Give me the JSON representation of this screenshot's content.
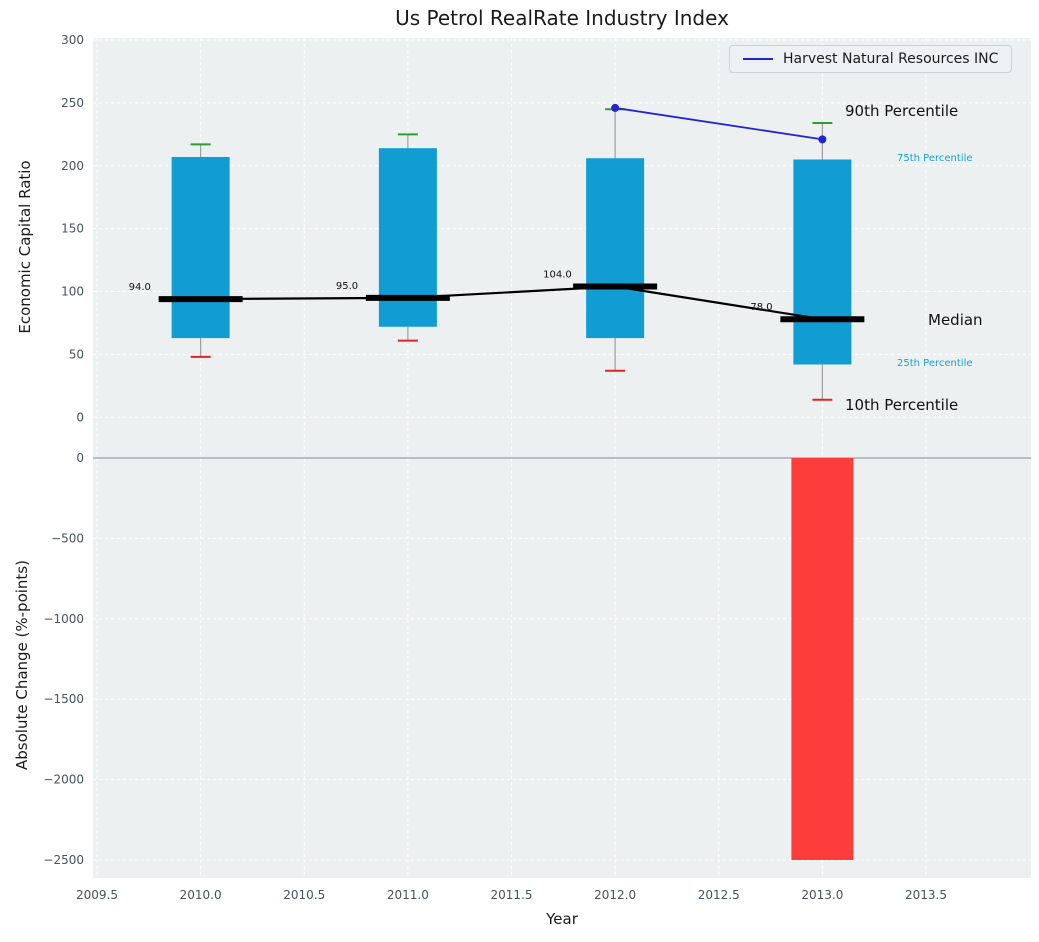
{
  "annotations": {
    "p90": "90th Percentile",
    "p75": "75th Percentile",
    "median": "Median",
    "p25": "25th Percentile",
    "p10": "10th Percentile"
  },
  "colors": {
    "panel_bg": "#edf0f1",
    "grid": "#ffffff",
    "bar": "#119dd4",
    "bar_negative": "#fd3c3c",
    "median": "#000000",
    "company_line": "#2424cf",
    "whisker": "#9e9e9e",
    "whisker_high_cap": "#2ca02c",
    "whisker_low_cap": "#e02424",
    "annotation_accent": "#17a3cf",
    "tick_text": "#44535c"
  },
  "chart_data": [
    {
      "type": "box-bar",
      "panel": "top",
      "title": "Us Petrol RealRate Industry Index",
      "ylabel": "Economic Capital Ratio",
      "ylim": [
        -32,
        300
      ],
      "yticks": [
        300,
        250,
        200,
        150,
        100,
        50,
        0
      ],
      "grid": true,
      "years": [
        2010,
        2011,
        2012,
        2013
      ],
      "percentiles": {
        "p10": [
          48,
          61,
          37,
          14
        ],
        "p25": [
          63,
          72,
          63,
          42
        ],
        "median": [
          94,
          95,
          104,
          78
        ],
        "p75": [
          207,
          214,
          206,
          205
        ],
        "p90": [
          217,
          225,
          245,
          234
        ]
      },
      "median_labels": [
        "94.0",
        "95.0",
        "104.0",
        "78.0"
      ],
      "company": {
        "name": "Harvest Natural Resources INC",
        "x": [
          2012,
          2013
        ],
        "y": [
          246,
          221
        ]
      },
      "legend_position": "upper right"
    },
    {
      "type": "bar",
      "panel": "bottom",
      "xlabel": "Year",
      "ylabel": "Absolute Change (%-points)",
      "ylim": [
        -2610,
        0
      ],
      "yticks": [
        0,
        -500,
        -1000,
        -1500,
        -2000,
        -2500
      ],
      "xticks": [
        "2009.5",
        "2010.0",
        "2010.5",
        "2011.0",
        "2011.5",
        "2012.0",
        "2012.5",
        "2013.0",
        "2013.5"
      ],
      "bars": [
        {
          "x": 2013,
          "value": -2500
        }
      ]
    }
  ]
}
